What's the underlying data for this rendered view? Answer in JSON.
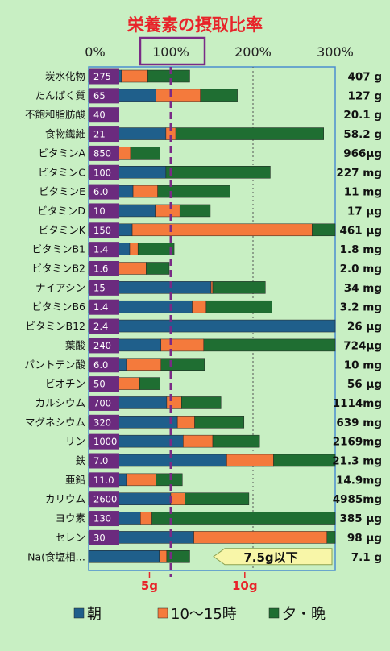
{
  "chart_data": {
    "type": "bar",
    "title": "栄養素の摂取比率",
    "x_ticks": [
      "0%",
      "100%",
      "200%",
      "300%"
    ],
    "xlim": [
      0,
      300
    ],
    "reference_percent": 100,
    "series": [
      {
        "name": "朝",
        "color": "#1f5f8b"
      },
      {
        "name": "10〜15時",
        "color": "#f47a3c"
      },
      {
        "name": "夕・晩",
        "color": "#1f6e32"
      }
    ],
    "rows": [
      {
        "label": "炭水化物",
        "target": "275",
        "segments": [
          40,
          32,
          51
        ],
        "amount": "407 g"
      },
      {
        "label": "たんぱく質",
        "target": "65",
        "segments": [
          82,
          54,
          45
        ],
        "amount": "127 g"
      },
      {
        "label": "不飽和脂肪酸",
        "target": "40",
        "segments": [
          0,
          9,
          7
        ],
        "amount": "20.1 g"
      },
      {
        "label": "食物繊維",
        "target": "21",
        "segments": [
          94,
          12,
          180
        ],
        "amount": "58.2 g"
      },
      {
        "label": "ビタミンA",
        "target": "850",
        "segments": [
          28,
          23,
          36
        ],
        "amount": "966μg"
      },
      {
        "label": "ビタミンC",
        "target": "100",
        "segments": [
          94,
          0,
          127
        ],
        "amount": "227 mg"
      },
      {
        "label": "ビタミンE",
        "target": "6.0",
        "segments": [
          54,
          30,
          88
        ],
        "amount": "11 mg"
      },
      {
        "label": "ビタミンD",
        "target": "10",
        "segments": [
          81,
          30,
          37
        ],
        "amount": "17 μg"
      },
      {
        "label": "ビタミンK",
        "target": "150",
        "segments": [
          53,
          219,
          52
        ],
        "amount": "461 μg"
      },
      {
        "label": "ビタミンB1",
        "target": "1.4",
        "segments": [
          50,
          10,
          44
        ],
        "amount": "1.8 mg"
      },
      {
        "label": "ビタミンB2",
        "target": "1.6",
        "segments": [
          12,
          58,
          28
        ],
        "amount": "2.0 mg"
      },
      {
        "label": "ナイアシン",
        "target": "15",
        "segments": [
          149,
          2,
          64
        ],
        "amount": "34 mg"
      },
      {
        "label": "ビタミンB6",
        "target": "1.4",
        "segments": [
          126,
          17,
          80
        ],
        "amount": "3.2 mg"
      },
      {
        "label": "ビタミンB12",
        "target": "2.4",
        "segments": [
          310,
          0,
          0
        ],
        "amount": "26 μg"
      },
      {
        "label": "葉酸",
        "target": "240",
        "segments": [
          88,
          52,
          160
        ],
        "amount": "724μg"
      },
      {
        "label": "パントテン酸",
        "target": "6.0",
        "segments": [
          46,
          42,
          53
        ],
        "amount": "10 mg"
      },
      {
        "label": "ビオチン",
        "target": "50",
        "segments": [
          0,
          62,
          25
        ],
        "amount": "56 μg"
      },
      {
        "label": "カルシウム",
        "target": "700",
        "segments": [
          95,
          18,
          48
        ],
        "amount": "1114mg"
      },
      {
        "label": "マグネシウム",
        "target": "320",
        "segments": [
          108,
          21,
          60
        ],
        "amount": "639 mg"
      },
      {
        "label": "リン",
        "target": "1000",
        "segments": [
          115,
          36,
          57
        ],
        "amount": "2169mg"
      },
      {
        "label": "鉄",
        "target": "7.0",
        "segments": [
          168,
          57,
          85
        ],
        "amount": "21.3 mg"
      },
      {
        "label": "亜鉛",
        "target": "11.0",
        "segments": [
          46,
          36,
          32
        ],
        "amount": "14.9mg"
      },
      {
        "label": "カリウム",
        "target": "2600",
        "segments": [
          100,
          17,
          78
        ],
        "amount": "4985mg"
      },
      {
        "label": "ヨウ素",
        "target": "130",
        "segments": [
          63,
          14,
          233
        ],
        "amount": "385 μg"
      },
      {
        "label": "セレン",
        "target": "30",
        "segments": [
          128,
          162,
          26
        ],
        "amount": "98 μg"
      },
      {
        "label": "Na(食塩相…",
        "target": "",
        "segments": [
          86,
          9,
          28
        ],
        "amount": "7.1 g"
      }
    ],
    "bottom_ticks": [
      {
        "label": "5g",
        "percent": 74
      },
      {
        "label": "10g",
        "percent": 190
      }
    ],
    "sodium_note": "7.5g以下"
  }
}
